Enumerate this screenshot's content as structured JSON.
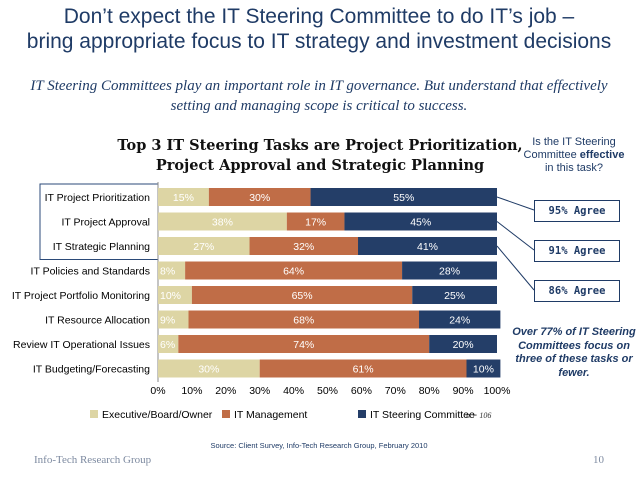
{
  "slide": {
    "title_line1": "Don’t expect the IT Steering Committee to do IT’s job –",
    "title_line2": "bring appropriate focus to IT strategy and investment decisions",
    "subtitle": "IT Steering Committees play an important role in IT governance. But understand that effectively setting and managing scope is critical to success.",
    "side_question_pre": "Is the IT Steering Committee",
    "side_question_bold": "effective",
    "side_question_post": "in this task?",
    "agree": [
      "95%  Agree",
      "91%  Agree",
      "86%  Agree"
    ],
    "note": "Over 77% of IT Steering Committees focus on three of these tasks or fewer.",
    "source": "Source: Client Survey, Info-Tech Research Group, February 2010",
    "footer_org": "Info-Tech Research Group",
    "page_number": "10",
    "n_label": "n = 106"
  },
  "colors": {
    "executive": "#ddd5a4",
    "it_management": "#c06d47",
    "steering": "#243e68",
    "title": "#1f3b66"
  },
  "chart_data": {
    "type": "bar",
    "orientation": "horizontal",
    "stacked": true,
    "title_line1": "Top 3 IT Steering Tasks are Project Prioritization,",
    "title_line2": "Project Approval and Strategic Planning",
    "categories": [
      "IT Project Prioritization",
      "IT Project Approval",
      "IT Strategic Planning",
      "IT Policies and Standards",
      "IT Project Portfolio Monitoring",
      "IT Resource Allocation",
      "Review IT Operational Issues",
      "IT Budgeting/Forecasting"
    ],
    "series": [
      {
        "name": "Executive/Board/Owner",
        "values": [
          15,
          38,
          27,
          8,
          10,
          9,
          6,
          30
        ],
        "labels": [
          "15%",
          "38%",
          "27%",
          "8%",
          "10%",
          "9%",
          "6%",
          "30%"
        ]
      },
      {
        "name": "IT Management",
        "values": [
          30,
          17,
          32,
          64,
          65,
          68,
          74,
          61
        ],
        "labels": [
          "30%",
          "17%",
          "32%",
          "64%",
          "65%",
          "68%",
          "74%",
          "61%"
        ]
      },
      {
        "name": "IT Steering Committee",
        "values": [
          55,
          45,
          41,
          28,
          25,
          24,
          20,
          10
        ],
        "labels": [
          "55%",
          "45%",
          "41%",
          "28%",
          "25%",
          "24%",
          "20%",
          "10%"
        ]
      }
    ],
    "x_ticks": [
      "0%",
      "10%",
      "20%",
      "30%",
      "40%",
      "50%",
      "60%",
      "70%",
      "80%",
      "90%",
      "100%"
    ],
    "xlim": [
      0,
      100
    ],
    "grid": false,
    "legend_position": "bottom",
    "highlighted_rows": [
      0,
      1,
      2
    ]
  }
}
